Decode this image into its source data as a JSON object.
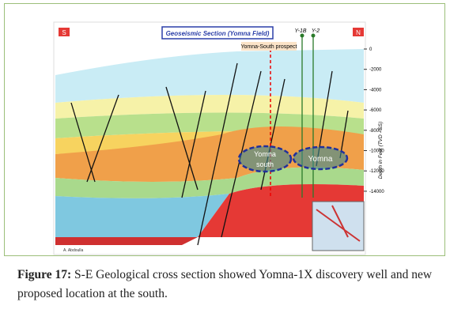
{
  "figure": {
    "section_title": "Geoseismic Section (Yomna Field)",
    "south_label": "S",
    "north_label": "N",
    "wells": [
      "Y-1B",
      "Y-2"
    ],
    "prospect_label": "Yomna-South prospect",
    "target_south": "Yomna south",
    "target_north": "Yomna",
    "depth_axis_label": "Depth in Feet (TVD - SS)",
    "depth_ticks": [
      "0",
      "-2000",
      "-4000",
      "-6000",
      "-8000",
      "-10000",
      "-12000",
      "-14000"
    ],
    "author": "A. Abdoulla"
  },
  "caption": {
    "label": "Figure 17:",
    "text": "S-E Geological cross section showed Yomna-1X discovery well and new proposed location at the south."
  }
}
